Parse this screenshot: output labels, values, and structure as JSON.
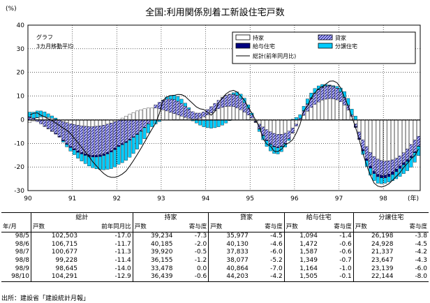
{
  "chart_data": {
    "type": "bar",
    "title": "全国:利用関係別着工新設住宅戸数",
    "yunit": "(%)",
    "xunit": "(年)",
    "annotation": [
      "グラフ",
      "3カ月移動平均"
    ],
    "ylim": [
      -30,
      40
    ],
    "yticks": [
      40,
      30,
      20,
      10,
      0,
      -10,
      -20,
      -30
    ],
    "xrange": [
      1990,
      1998.83
    ],
    "xticks": [
      {
        "x": 1990,
        "label": "90"
      },
      {
        "x": 1991,
        "label": "91"
      },
      {
        "x": 1992,
        "label": "92"
      },
      {
        "x": 1993,
        "label": "93"
      },
      {
        "x": 1994,
        "label": "94"
      },
      {
        "x": 1995,
        "label": "95"
      },
      {
        "x": 1996,
        "label": "96"
      },
      {
        "x": 1997,
        "label": "97"
      },
      {
        "x": 1998,
        "label": "98"
      }
    ],
    "grid": true,
    "legend_position": "top-right",
    "months": [
      "1990-01",
      "1990-02",
      "1990-03",
      "1990-04",
      "1990-05",
      "1990-06",
      "1990-07",
      "1990-08",
      "1990-09",
      "1990-10",
      "1990-11",
      "1990-12",
      "1991-01",
      "1991-02",
      "1991-03",
      "1991-04",
      "1991-05",
      "1991-06",
      "1991-07",
      "1991-08",
      "1991-09",
      "1991-10",
      "1991-11",
      "1991-12",
      "1992-01",
      "1992-02",
      "1992-03",
      "1992-04",
      "1992-05",
      "1992-06",
      "1992-07",
      "1992-08",
      "1992-09",
      "1992-10",
      "1992-11",
      "1992-12",
      "1993-01",
      "1993-02",
      "1993-03",
      "1993-04",
      "1993-05",
      "1993-06",
      "1993-07",
      "1993-08",
      "1993-09",
      "1993-10",
      "1993-11",
      "1993-12",
      "1994-01",
      "1994-02",
      "1994-03",
      "1994-04",
      "1994-05",
      "1994-06",
      "1994-07",
      "1994-08",
      "1994-09",
      "1994-10",
      "1994-11",
      "1994-12",
      "1995-01",
      "1995-02",
      "1995-03",
      "1995-04",
      "1995-05",
      "1995-06",
      "1995-07",
      "1995-08",
      "1995-09",
      "1995-10",
      "1995-11",
      "1995-12",
      "1996-01",
      "1996-02",
      "1996-03",
      "1996-04",
      "1996-05",
      "1996-06",
      "1996-07",
      "1996-08",
      "1996-09",
      "1996-10",
      "1996-11",
      "1996-12",
      "1997-01",
      "1997-02",
      "1997-03",
      "1997-04",
      "1997-05",
      "1997-06",
      "1997-07",
      "1997-08",
      "1997-09",
      "1997-10",
      "1997-11",
      "1997-12",
      "1998-01",
      "1998-02",
      "1998-03",
      "1998-04",
      "1998-05",
      "1998-06",
      "1998-07",
      "1998-08",
      "1998-09",
      "1998-10"
    ],
    "series": [
      {
        "name": "持家",
        "type": "bar",
        "color": "#ffffff",
        "values": [
          -1.2,
          -0.5,
          0.8,
          1.2,
          1.3,
          1.0,
          0.6,
          0.2,
          -0.3,
          -0.8,
          -1.3,
          -1.7,
          -2.0,
          -2.3,
          -2.6,
          -2.8,
          -2.9,
          -2.9,
          -2.8,
          -2.6,
          -2.3,
          -1.9,
          -1.4,
          -0.8,
          -0.1,
          0.7,
          1.5,
          2.3,
          3.0,
          3.7,
          4.2,
          4.6,
          4.9,
          5.0,
          4.9,
          4.6,
          4.2,
          3.7,
          3.1,
          2.6,
          2.0,
          1.5,
          1.0,
          0.6,
          0.3,
          0.3,
          0.6,
          1.2,
          2.0,
          2.9,
          3.8,
          4.6,
          5.2,
          5.6,
          5.7,
          5.5,
          5.0,
          4.2,
          3.2,
          2.0,
          0.7,
          -0.6,
          -1.9,
          -3.1,
          -4.2,
          -5.1,
          -5.8,
          -6.2,
          -6.2,
          -5.7,
          -4.8,
          -3.5,
          -1.9,
          -0.1,
          1.8,
          3.6,
          5.2,
          6.5,
          7.5,
          8.3,
          8.7,
          8.9,
          8.8,
          8.4,
          7.6,
          6.2,
          4.1,
          1.4,
          -1.8,
          -5.2,
          -8.5,
          -11.4,
          -13.8,
          -15.6,
          -16.7,
          -17.3,
          -17.5,
          -17.4,
          -17.0,
          -16.3,
          -15.3,
          -14.0,
          -12.4,
          -10.5,
          -8.6,
          -7.0
        ]
      },
      {
        "name": "貸家",
        "type": "bar",
        "color": "#9999ff",
        "values": [
          1.0,
          0.5,
          -0.8,
          -1.8,
          -2.8,
          -3.8,
          -4.8,
          -5.8,
          -6.8,
          -7.8,
          -8.8,
          -9.6,
          -10.3,
          -10.9,
          -11.3,
          -11.7,
          -12.0,
          -12.2,
          -12.3,
          -12.3,
          -12.2,
          -12.0,
          -11.7,
          -11.3,
          -10.8,
          -10.1,
          -9.3,
          -8.3,
          -7.2,
          -6.0,
          -4.7,
          -3.2,
          -1.7,
          -0.1,
          1.4,
          2.8,
          4.0,
          5.0,
          5.6,
          5.9,
          5.8,
          5.4,
          4.7,
          3.9,
          3.1,
          2.5,
          2.2,
          2.1,
          2.3,
          2.6,
          3.1,
          3.6,
          4.1,
          4.6,
          5.0,
          5.2,
          5.2,
          4.8,
          4.0,
          2.8,
          1.3,
          -0.3,
          -1.9,
          -3.3,
          -4.4,
          -5.1,
          -5.4,
          -5.4,
          -5.0,
          -4.3,
          -3.3,
          -2.1,
          -0.8,
          0.6,
          1.9,
          3.0,
          3.9,
          4.6,
          5.1,
          5.4,
          5.5,
          5.4,
          5.2,
          4.8,
          4.2,
          3.3,
          2.1,
          0.6,
          -1.1,
          -2.7,
          -4.1,
          -5.2,
          -5.9,
          -6.3,
          -6.4,
          -6.3,
          -6.0,
          -5.6,
          -5.1,
          -4.6,
          -4.3,
          -4.2,
          -4.5,
          -5.0,
          -5.0,
          -4.2
        ]
      },
      {
        "name": "給与住宅",
        "type": "bar",
        "color": "#000080",
        "values": [
          0.2,
          0.2,
          0.1,
          0.0,
          -0.1,
          -0.1,
          -0.2,
          -0.3,
          -0.3,
          -0.4,
          -0.4,
          -0.5,
          -0.5,
          -0.6,
          -0.6,
          -0.6,
          -0.7,
          -0.7,
          -0.7,
          -0.7,
          -0.7,
          -0.6,
          -0.6,
          -0.6,
          -0.5,
          -0.5,
          -0.4,
          -0.4,
          -0.3,
          -0.3,
          -0.2,
          -0.2,
          -0.1,
          -0.1,
          0.0,
          0.0,
          0.0,
          0.0,
          0.0,
          -0.1,
          -0.1,
          -0.1,
          -0.2,
          -0.2,
          -0.2,
          -0.2,
          -0.2,
          -0.2,
          -0.1,
          -0.1,
          0.0,
          0.0,
          0.1,
          0.1,
          0.1,
          0.1,
          0.1,
          0.0,
          0.0,
          -0.1,
          -0.1,
          -0.2,
          -0.2,
          -0.3,
          -0.3,
          -0.3,
          -0.3,
          -0.3,
          -0.2,
          -0.2,
          -0.1,
          -0.1,
          0.0,
          0.0,
          0.1,
          0.1,
          0.1,
          0.2,
          0.2,
          0.2,
          0.2,
          0.2,
          0.1,
          0.1,
          0.0,
          -0.1,
          -0.2,
          -0.3,
          -0.4,
          -0.5,
          -0.6,
          -0.7,
          -0.8,
          -0.9,
          -1.0,
          -1.0,
          -1.1,
          -1.1,
          -1.1,
          -1.1,
          -1.0,
          -0.9,
          -0.8,
          -0.6,
          -0.4,
          -0.1
        ]
      },
      {
        "name": "分譲住宅",
        "type": "bar",
        "color": "#00ccff",
        "values": [
          2.0,
          2.5,
          2.8,
          2.5,
          2.0,
          1.5,
          1.0,
          0.5,
          0.0,
          -0.5,
          -1.0,
          -1.5,
          -2.0,
          -2.5,
          -3.0,
          -3.5,
          -4.0,
          -4.5,
          -5.0,
          -5.5,
          -6.0,
          -6.5,
          -7.0,
          -7.3,
          -7.5,
          -7.6,
          -7.5,
          -7.2,
          -6.8,
          -6.2,
          -5.5,
          -4.7,
          -3.8,
          -2.8,
          -1.8,
          -0.8,
          0.1,
          0.9,
          1.5,
          1.9,
          2.0,
          1.8,
          1.3,
          0.6,
          -0.3,
          -1.2,
          -2.1,
          -2.8,
          -3.3,
          -3.5,
          -3.4,
          -3.0,
          -2.3,
          -1.4,
          -0.4,
          0.6,
          1.4,
          1.8,
          1.9,
          1.5,
          0.8,
          -0.1,
          -1.0,
          -1.8,
          -2.4,
          -2.7,
          -2.8,
          -2.6,
          -2.1,
          -1.4,
          -0.6,
          0.2,
          0.9,
          1.5,
          1.9,
          2.1,
          2.1,
          1.9,
          1.5,
          1.0,
          0.5,
          0.2,
          0.3,
          0.8,
          1.6,
          2.4,
          2.8,
          2.5,
          1.5,
          0.0,
          -1.5,
          -2.5,
          -3.0,
          -3.0,
          -2.8,
          -2.5,
          -2.3,
          -2.3,
          -2.6,
          -3.0,
          -3.4,
          -3.7,
          -3.9,
          -4.0,
          -4.0,
          -3.9
        ]
      },
      {
        "name": "総計(前年同月比)",
        "type": "line",
        "color": "#000000",
        "values": [
          2.0,
          2.7,
          2.9,
          1.9,
          1.2,
          0.4,
          -0.4,
          -1.4,
          -2.4,
          -3.5,
          -4.5,
          -5.9,
          -7.8,
          -9.7,
          -11.7,
          -13.6,
          -15.6,
          -17.8,
          -19.5,
          -21.3,
          -22.8,
          -23.9,
          -24.4,
          -24.4,
          -23.9,
          -23.0,
          -21.7,
          -19.6,
          -17.3,
          -14.8,
          -12.2,
          -9.5,
          -6.7,
          -4.0,
          -1.5,
          2.6,
          8.2,
          9.6,
          10.2,
          10.3,
          10.7,
          10.6,
          9.8,
          8.3,
          6.9,
          5.4,
          4.6,
          4.3,
          3.2,
          1.9,
          3.5,
          7.2,
          9.1,
          10.9,
          12.0,
          12.4,
          11.7,
          10.0,
          8.2,
          5.2,
          2.7,
          -0.2,
          -3.0,
          -8.0,
          -10.3,
          -11.2,
          -13.3,
          -13.5,
          -12.5,
          -10.6,
          -9.8,
          -8.5,
          -5.6,
          -2.0,
          3.7,
          5.7,
          9.2,
          11.4,
          13.1,
          14.0,
          15.1,
          16.3,
          16.4,
          15.6,
          13.4,
          9.4,
          5.7,
          1.2,
          -3.3,
          -8.5,
          -14.3,
          -19.4,
          -23.5,
          -26.8,
          -28.1,
          -28.5,
          -28.0,
          -27.1,
          -25.6,
          -24.0,
          -22.4,
          -20.2,
          -18.5,
          -16.5,
          -15.2,
          -12.4
        ]
      }
    ]
  },
  "table": {
    "row_label_header": "年/月",
    "groups": [
      {
        "name": "総計",
        "sub": [
          "戸数",
          "前年同月比"
        ]
      },
      {
        "name": "持家",
        "sub": [
          "戸数",
          "寄与度"
        ]
      },
      {
        "name": "貸家",
        "sub": [
          "戸数",
          "寄与度"
        ]
      },
      {
        "name": "給与住宅",
        "sub": [
          "戸数",
          "寄与度"
        ]
      },
      {
        "name": "分譲住宅",
        "sub": [
          "戸数",
          "寄与度"
        ]
      }
    ],
    "rows": [
      {
        "period": "98/5",
        "cells": [
          "102,503",
          "-17.0",
          "39,234",
          "-7.3",
          "35,977",
          "-4.5",
          "1,094",
          "-1.4",
          "26,198",
          "-3.8"
        ]
      },
      {
        "period": "98/6",
        "cells": [
          "106,715",
          "-11.7",
          "40,185",
          "-2.0",
          "40,130",
          "-4.6",
          "1,472",
          "-0.6",
          "24,928",
          "-4.5"
        ]
      },
      {
        "period": "98/7",
        "cells": [
          "100,677",
          "-11.3",
          "39,920",
          "-0.5",
          "37,833",
          "-6.0",
          "1,587",
          "-0.6",
          "21,337",
          "-4.2"
        ]
      },
      {
        "period": "98/8",
        "cells": [
          "99,228",
          "-11.4",
          "36,155",
          "-1.2",
          "38,077",
          "-5.2",
          "1,349",
          "-0.7",
          "23,647",
          "-4.3"
        ]
      },
      {
        "period": "98/9",
        "cells": [
          "98,645",
          "-14.0",
          "33,478",
          "0.0",
          "40,864",
          "-7.0",
          "1,164",
          "-1.0",
          "23,139",
          "-6.0"
        ]
      },
      {
        "period": "98/10",
        "cells": [
          "104,291",
          "-12.9",
          "36,439",
          "-0.6",
          "44,203",
          "-4.2",
          "1,505",
          "-0.1",
          "22,144",
          "-8.0"
        ]
      }
    ]
  },
  "source": "出所：建設省「建設統計月報」"
}
